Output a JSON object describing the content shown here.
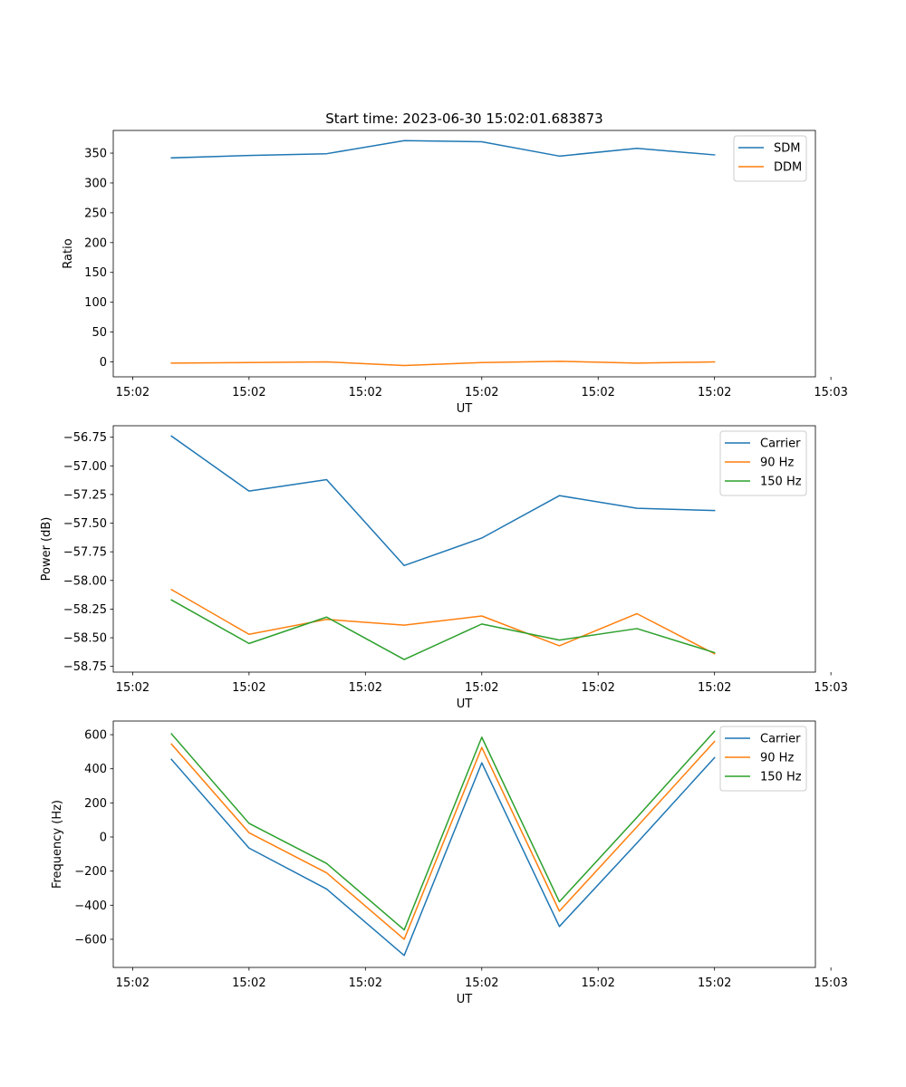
{
  "figure": {
    "title": "Start time: 2023-06-30 15:02:01.683873"
  },
  "chart_data": [
    {
      "type": "line",
      "title": "Start time: 2023-06-30 15:02:01.683873",
      "xlabel": "UT",
      "ylabel": "Ratio",
      "xlim": [
        -0.75,
        8.3
      ],
      "ylim": [
        -25,
        388
      ],
      "x_ticks": [
        {
          "v": -0.5,
          "label": "15:02"
        },
        {
          "v": 1.0,
          "label": "15:02"
        },
        {
          "v": 2.5,
          "label": "15:02"
        },
        {
          "v": 4.0,
          "label": "15:02"
        },
        {
          "v": 5.5,
          "label": "15:02"
        },
        {
          "v": 7.0,
          "label": "15:02"
        },
        {
          "v": 8.5,
          "label": "15:03"
        }
      ],
      "y_ticks": [
        0,
        50,
        100,
        150,
        200,
        250,
        300,
        350
      ],
      "x": [
        0,
        1,
        2,
        3,
        4,
        5,
        6,
        7
      ],
      "series": [
        {
          "name": "SDM",
          "color": "#1f77b4",
          "values": [
            342,
            346,
            349,
            371,
            369,
            345,
            358,
            347
          ]
        },
        {
          "name": "DDM",
          "color": "#ff7f0e",
          "values": [
            -2,
            -1,
            0,
            -6,
            -1,
            1,
            -2,
            0
          ]
        }
      ],
      "legend": "upper right",
      "grid": false
    },
    {
      "type": "line",
      "xlabel": "UT",
      "ylabel": "Power (dB)",
      "xlim": [
        -0.75,
        8.3
      ],
      "ylim": [
        -58.8,
        -56.65
      ],
      "x_ticks": [
        {
          "v": -0.5,
          "label": "15:02"
        },
        {
          "v": 1.0,
          "label": "15:02"
        },
        {
          "v": 2.5,
          "label": "15:02"
        },
        {
          "v": 4.0,
          "label": "15:02"
        },
        {
          "v": 5.5,
          "label": "15:02"
        },
        {
          "v": 7.0,
          "label": "15:02"
        },
        {
          "v": 8.5,
          "label": "15:03"
        }
      ],
      "y_ticks": [
        -58.75,
        -58.5,
        -58.25,
        -58.0,
        -57.75,
        -57.5,
        -57.25,
        -57.0,
        -56.75
      ],
      "y_tick_labels": [
        "−58.75",
        "−58.50",
        "−58.25",
        "−58.00",
        "−57.75",
        "−57.50",
        "−57.25",
        "−57.00",
        "−56.75"
      ],
      "x": [
        0,
        1,
        2,
        3,
        4,
        5,
        6,
        7
      ],
      "series": [
        {
          "name": "Carrier",
          "color": "#1f77b4",
          "values": [
            -56.74,
            -57.22,
            -57.12,
            -57.87,
            -57.63,
            -57.26,
            -57.37,
            -57.39
          ]
        },
        {
          "name": "90 Hz",
          "color": "#ff7f0e",
          "values": [
            -58.08,
            -58.47,
            -58.34,
            -58.39,
            -58.31,
            -58.57,
            -58.29,
            -58.64
          ]
        },
        {
          "name": "150 Hz",
          "color": "#2ca02c",
          "values": [
            -58.17,
            -58.55,
            -58.32,
            -58.69,
            -58.38,
            -58.52,
            -58.42,
            -58.63
          ]
        }
      ],
      "legend": "upper right",
      "grid": false
    },
    {
      "type": "line",
      "xlabel": "UT",
      "ylabel": "Frequency (Hz)",
      "xlim": [
        -0.75,
        8.3
      ],
      "ylim": [
        -765,
        680
      ],
      "x_ticks": [
        {
          "v": -0.5,
          "label": "15:02"
        },
        {
          "v": 1.0,
          "label": "15:02"
        },
        {
          "v": 2.5,
          "label": "15:02"
        },
        {
          "v": 4.0,
          "label": "15:02"
        },
        {
          "v": 5.5,
          "label": "15:02"
        },
        {
          "v": 7.0,
          "label": "15:02"
        },
        {
          "v": 8.5,
          "label": "15:03"
        }
      ],
      "y_ticks": [
        -600,
        -400,
        -200,
        0,
        200,
        400,
        600
      ],
      "y_tick_labels": [
        "−600",
        "−400",
        "−200",
        "0",
        "200",
        "400",
        "600"
      ],
      "x": [
        0,
        1,
        2,
        3,
        4,
        5,
        6,
        7
      ],
      "series": [
        {
          "name": "Carrier",
          "color": "#1f77b4",
          "values": [
            455,
            -65,
            -305,
            -695,
            435,
            -525,
            -35,
            465
          ]
        },
        {
          "name": "90 Hz",
          "color": "#ff7f0e",
          "values": [
            545,
            25,
            -210,
            -600,
            525,
            -435,
            60,
            560
          ]
        },
        {
          "name": "150 Hz",
          "color": "#2ca02c",
          "values": [
            605,
            80,
            -155,
            -545,
            585,
            -380,
            115,
            620
          ]
        }
      ],
      "legend": "upper right",
      "grid": false
    }
  ]
}
